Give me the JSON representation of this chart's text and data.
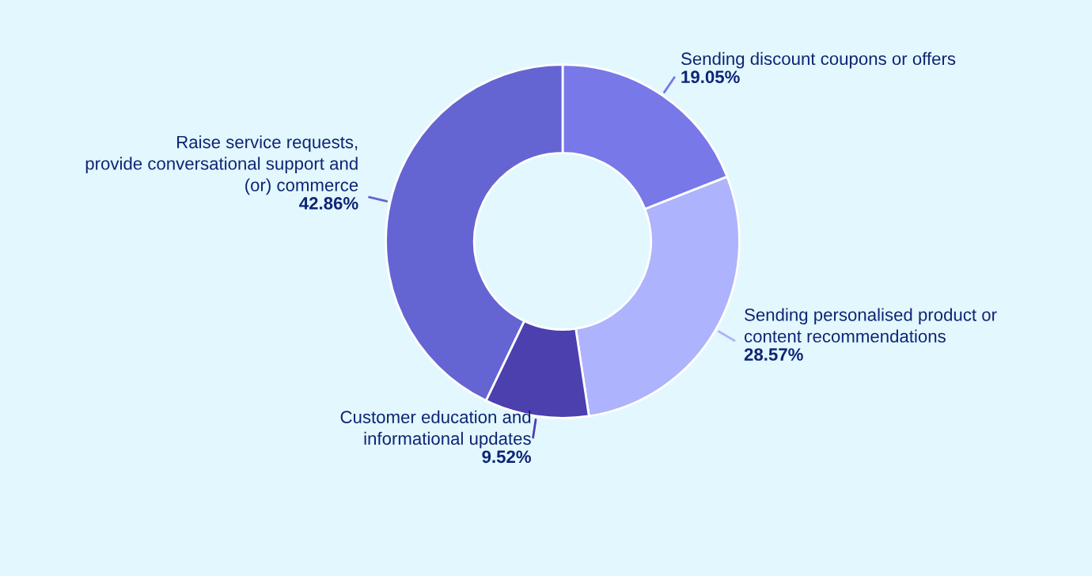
{
  "chart_data": {
    "type": "donut",
    "categories": [
      "Sending discount coupons or offers",
      "Sending personalised product or\ncontent recommendations",
      "Customer education and\ninformational updates",
      "Raise service requests,\nprovide conversational support and\n(or) commerce"
    ],
    "values": [
      19.05,
      28.57,
      9.52,
      42.86
    ],
    "value_labels": [
      "19.05%",
      "28.57%",
      "9.52%",
      "42.86%"
    ],
    "colors": [
      "#7878e8",
      "#adb3fc",
      "#4c3fae",
      "#6464d2"
    ]
  }
}
